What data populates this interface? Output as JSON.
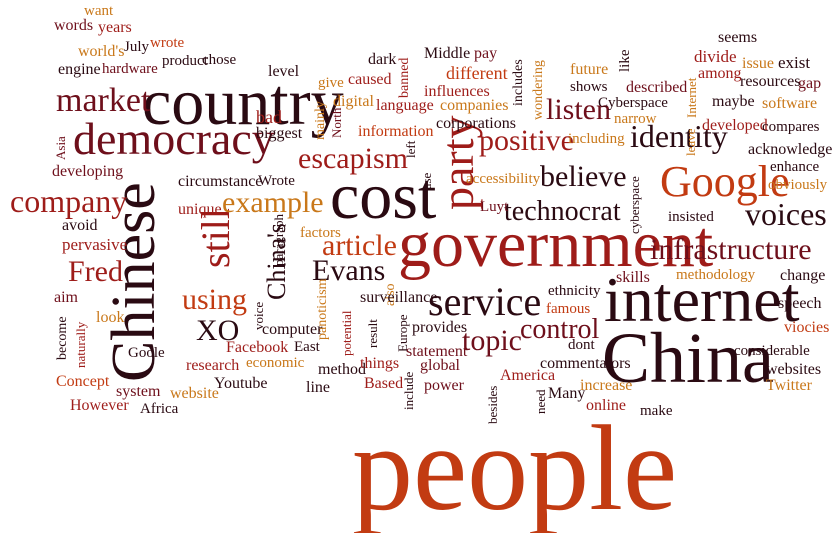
{
  "words": [
    {
      "id": "people",
      "text": "people",
      "color": "#c23b12"
    },
    {
      "id": "government",
      "text": "government",
      "color": "#9e1c19"
    },
    {
      "id": "chinese",
      "text": "Chinese",
      "color": "#2a0a12"
    },
    {
      "id": "country",
      "text": "country",
      "color": "#2a0a12"
    },
    {
      "id": "china",
      "text": "China",
      "color": "#2a0a12"
    },
    {
      "id": "internet",
      "text": "internet",
      "color": "#2a0a12"
    },
    {
      "id": "cost",
      "text": "cost",
      "color": "#2a0a12"
    },
    {
      "id": "democracy",
      "text": "democracy",
      "color": "#6e0f1b"
    },
    {
      "id": "party",
      "text": "party",
      "color": "#9e1c19"
    },
    {
      "id": "google",
      "text": "Google",
      "color": "#c23b12"
    },
    {
      "id": "service",
      "text": "service",
      "color": "#2a0a12"
    },
    {
      "id": "still",
      "text": "still",
      "color": "#9e1c19"
    },
    {
      "id": "escapism",
      "text": "escapism",
      "color": "#9e1c19"
    },
    {
      "id": "positive",
      "text": "positive",
      "color": "#9e1c19"
    },
    {
      "id": "identity",
      "text": "identity",
      "color": "#2a0a12"
    },
    {
      "id": "infrastructure",
      "text": "infrastructure",
      "color": "#6e0f1b"
    },
    {
      "id": "technocrat",
      "text": "technocrat",
      "color": "#2a0a12"
    },
    {
      "id": "company",
      "text": "company",
      "color": "#9e1c19"
    },
    {
      "id": "market",
      "text": "market",
      "color": "#6e0f1b"
    },
    {
      "id": "believe",
      "text": "believe",
      "color": "#2a0a12"
    },
    {
      "id": "listen",
      "text": "listen",
      "color": "#6e0f1b"
    },
    {
      "id": "voices",
      "text": "voices",
      "color": "#2a0a12"
    },
    {
      "id": "article",
      "text": "article",
      "color": "#c23b12"
    },
    {
      "id": "example",
      "text": "example",
      "color": "#c9781a"
    },
    {
      "id": "evans",
      "text": "Evans",
      "color": "#2a0a12"
    },
    {
      "id": "topic",
      "text": "topic",
      "color": "#6e0f1b"
    },
    {
      "id": "control",
      "text": "control",
      "color": "#6e0f1b"
    },
    {
      "id": "fred",
      "text": "Fred",
      "color": "#9e1c19"
    },
    {
      "id": "using",
      "text": "using",
      "color": "#c23b12"
    },
    {
      "id": "chinas",
      "text": "China's",
      "color": "#2a0a12"
    },
    {
      "id": "xo",
      "text": "XO",
      "color": "#2a0a12"
    },
    {
      "id": "words",
      "text": "words",
      "color": "#6e0f1b"
    },
    {
      "id": "want",
      "text": "want",
      "color": "#c9781a"
    },
    {
      "id": "years",
      "text": "years",
      "color": "#9e1c19"
    },
    {
      "id": "worlds",
      "text": "world's",
      "color": "#c9781a"
    },
    {
      "id": "july",
      "text": "July",
      "color": "#2a0a12"
    },
    {
      "id": "wrote_lc",
      "text": "wrote",
      "color": "#c23b12"
    },
    {
      "id": "engine",
      "text": "engine",
      "color": "#2a0a12"
    },
    {
      "id": "hardware",
      "text": "hardware",
      "color": "#6e0f1b"
    },
    {
      "id": "product",
      "text": "product",
      "color": "#2a0a12"
    },
    {
      "id": "chose",
      "text": "chose",
      "color": "#2a0a12"
    },
    {
      "id": "level",
      "text": "level",
      "color": "#2a0a12"
    },
    {
      "id": "give",
      "text": "give",
      "color": "#c9781a"
    },
    {
      "id": "caused",
      "text": "caused",
      "color": "#9e1c19"
    },
    {
      "id": "dark",
      "text": "dark",
      "color": "#2a0a12"
    },
    {
      "id": "banned",
      "text": "banned",
      "color": "#9e1c19"
    },
    {
      "id": "middle",
      "text": "Middle",
      "color": "#2a0a12"
    },
    {
      "id": "pay",
      "text": "pay",
      "color": "#6e0f1b"
    },
    {
      "id": "different",
      "text": "different",
      "color": "#c23b12"
    },
    {
      "id": "influences",
      "text": "influences",
      "color": "#9e1c19"
    },
    {
      "id": "includes",
      "text": "includes",
      "color": "#2a0a12"
    },
    {
      "id": "future",
      "text": "future",
      "color": "#c9781a"
    },
    {
      "id": "shows",
      "text": "shows",
      "color": "#2a0a12"
    },
    {
      "id": "like",
      "text": "like",
      "color": "#2a0a12"
    },
    {
      "id": "wondering",
      "text": "wondering",
      "color": "#c9781a"
    },
    {
      "id": "described",
      "text": "described",
      "color": "#6e0f1b"
    },
    {
      "id": "internet_sm",
      "text": "Internet",
      "color": "#c9781a"
    },
    {
      "id": "divide",
      "text": "divide",
      "color": "#9e1c19"
    },
    {
      "id": "seems",
      "text": "seems",
      "color": "#2a0a12"
    },
    {
      "id": "among",
      "text": "among",
      "color": "#9e1c19"
    },
    {
      "id": "issue",
      "text": "issue",
      "color": "#c9781a"
    },
    {
      "id": "exist",
      "text": "exist",
      "color": "#2a0a12"
    },
    {
      "id": "gap",
      "text": "gap",
      "color": "#6e0f1b"
    },
    {
      "id": "resources",
      "text": "resources",
      "color": "#2a0a12"
    },
    {
      "id": "maybe",
      "text": "maybe",
      "color": "#2a0a12"
    },
    {
      "id": "software",
      "text": "software",
      "color": "#c9781a"
    },
    {
      "id": "digital",
      "text": "digital",
      "color": "#c9781a"
    },
    {
      "id": "mainly",
      "text": "mainly",
      "color": "#c9781a"
    },
    {
      "id": "language",
      "text": "language",
      "color": "#9e1c19"
    },
    {
      "id": "companies",
      "text": "companies",
      "color": "#c9781a"
    },
    {
      "id": "cyberspace_cap",
      "text": "Cyberspace",
      "color": "#2a0a12"
    },
    {
      "id": "narrow",
      "text": "narrow",
      "color": "#c9781a"
    },
    {
      "id": "developed",
      "text": "developed",
      "color": "#9e1c19"
    },
    {
      "id": "compares",
      "text": "compares",
      "color": "#2a0a12"
    },
    {
      "id": "bad",
      "text": "bad",
      "color": "#9e1c19"
    },
    {
      "id": "north",
      "text": "North",
      "color": "#6e0f1b"
    },
    {
      "id": "information",
      "text": "information",
      "color": "#c23b12"
    },
    {
      "id": "corporations",
      "text": "corporations",
      "color": "#2a0a12"
    },
    {
      "id": "including",
      "text": "including",
      "color": "#c9781a"
    },
    {
      "id": "asia",
      "text": "Asia",
      "color": "#6e0f1b"
    },
    {
      "id": "biggest",
      "text": "biggest",
      "color": "#2a0a12"
    },
    {
      "id": "left",
      "text": "left",
      "color": "#2a0a12"
    },
    {
      "id": "leave",
      "text": "leave",
      "color": "#c9781a"
    },
    {
      "id": "acknowledge",
      "text": "acknowledge",
      "color": "#2a0a12"
    },
    {
      "id": "enhance",
      "text": "enhance",
      "color": "#2a0a12"
    },
    {
      "id": "obviously",
      "text": "obviously",
      "color": "#c9781a"
    },
    {
      "id": "developing",
      "text": "developing",
      "color": "#6e0f1b"
    },
    {
      "id": "circumstance",
      "text": "circumstance",
      "color": "#2a0a12"
    },
    {
      "id": "wrote_cap",
      "text": "Wrote",
      "color": "#2a0a12"
    },
    {
      "id": "use",
      "text": "use",
      "color": "#2a0a12"
    },
    {
      "id": "accessibility",
      "text": "accessibility",
      "color": "#c9781a"
    },
    {
      "id": "cyberspace_lc",
      "text": "cyberspace",
      "color": "#2a0a12"
    },
    {
      "id": "unique",
      "text": "unique",
      "color": "#9e1c19"
    },
    {
      "id": "luyt",
      "text": "Luyt",
      "color": "#6e0f1b"
    },
    {
      "id": "insisted",
      "text": "insisted",
      "color": "#2a0a12"
    },
    {
      "id": "avoid",
      "text": "avoid",
      "color": "#2a0a12"
    },
    {
      "id": "pervasive",
      "text": "pervasive",
      "color": "#9e1c19"
    },
    {
      "id": "paragraph",
      "text": "paragraph",
      "color": "#2a0a12"
    },
    {
      "id": "factors",
      "text": "factors",
      "color": "#c9781a"
    },
    {
      "id": "also",
      "text": "also",
      "color": "#c9781a"
    },
    {
      "id": "change",
      "text": "change",
      "color": "#2a0a12"
    },
    {
      "id": "methodology",
      "text": "methodology",
      "color": "#c9781a"
    },
    {
      "id": "skills",
      "text": "skills",
      "color": "#6e0f1b"
    },
    {
      "id": "aim",
      "text": "aim",
      "color": "#6e0f1b"
    },
    {
      "id": "look",
      "text": "look",
      "color": "#c9781a"
    },
    {
      "id": "become",
      "text": "become",
      "color": "#2a0a12"
    },
    {
      "id": "naturally",
      "text": "naturally",
      "color": "#9e1c19"
    },
    {
      "id": "voice",
      "text": "voice",
      "color": "#2a0a12"
    },
    {
      "id": "panoticism",
      "text": "panoticism",
      "color": "#c9781a"
    },
    {
      "id": "potential",
      "text": "potential",
      "color": "#9e1c19"
    },
    {
      "id": "surveillance",
      "text": "surveillance",
      "color": "#2a0a12"
    },
    {
      "id": "ethnicity",
      "text": "ethnicity",
      "color": "#2a0a12"
    },
    {
      "id": "speech",
      "text": "speech",
      "color": "#2a0a12"
    },
    {
      "id": "viocies",
      "text": "viocies",
      "color": "#c23b12"
    },
    {
      "id": "computer",
      "text": "computer",
      "color": "#2a0a12"
    },
    {
      "id": "result",
      "text": "result",
      "color": "#2a0a12"
    },
    {
      "id": "europe",
      "text": "Europe",
      "color": "#2a0a12"
    },
    {
      "id": "provides",
      "text": "provides",
      "color": "#2a0a12"
    },
    {
      "id": "famous",
      "text": "famous",
      "color": "#c23b12"
    },
    {
      "id": "goole",
      "text": "Goole",
      "color": "#2a0a12"
    },
    {
      "id": "facebook",
      "text": "Facebook",
      "color": "#9e1c19"
    },
    {
      "id": "east",
      "text": "East",
      "color": "#2a0a12"
    },
    {
      "id": "statement",
      "text": "statement",
      "color": "#6e0f1b"
    },
    {
      "id": "dont",
      "text": "dont",
      "color": "#2a0a12"
    },
    {
      "id": "considerable",
      "text": "considerable",
      "color": "#2a0a12"
    },
    {
      "id": "research",
      "text": "research",
      "color": "#9e1c19"
    },
    {
      "id": "economic",
      "text": "economic",
      "color": "#c9781a"
    },
    {
      "id": "method",
      "text": "method",
      "color": "#2a0a12"
    },
    {
      "id": "things",
      "text": "things",
      "color": "#9e1c19"
    },
    {
      "id": "global",
      "text": "global",
      "color": "#6e0f1b"
    },
    {
      "id": "commentators",
      "text": "commentators",
      "color": "#2a0a12"
    },
    {
      "id": "websites",
      "text": "websites",
      "color": "#2a0a12"
    },
    {
      "id": "concept",
      "text": "Concept",
      "color": "#c23b12"
    },
    {
      "id": "youtube",
      "text": "Youtube",
      "color": "#2a0a12"
    },
    {
      "id": "line",
      "text": "line",
      "color": "#2a0a12"
    },
    {
      "id": "based",
      "text": "Based",
      "color": "#9e1c19"
    },
    {
      "id": "include",
      "text": "include",
      "color": "#2a0a12"
    },
    {
      "id": "power",
      "text": "power",
      "color": "#6e0f1b"
    },
    {
      "id": "america",
      "text": "America",
      "color": "#9e1c19"
    },
    {
      "id": "need",
      "text": "need",
      "color": "#2a0a12"
    },
    {
      "id": "many",
      "text": "Many",
      "color": "#2a0a12"
    },
    {
      "id": "increase",
      "text": "increase",
      "color": "#c9781a"
    },
    {
      "id": "twitter",
      "text": "Twitter",
      "color": "#c9781a"
    },
    {
      "id": "system",
      "text": "system",
      "color": "#6e0f1b"
    },
    {
      "id": "website",
      "text": "website",
      "color": "#c9781a"
    },
    {
      "id": "however",
      "text": "However",
      "color": "#9e1c19"
    },
    {
      "id": "africa",
      "text": "Africa",
      "color": "#2a0a12"
    },
    {
      "id": "besides",
      "text": "besides",
      "color": "#2a0a12"
    },
    {
      "id": "online",
      "text": "online",
      "color": "#9e1c19"
    },
    {
      "id": "make",
      "text": "make",
      "color": "#2a0a12"
    }
  ]
}
